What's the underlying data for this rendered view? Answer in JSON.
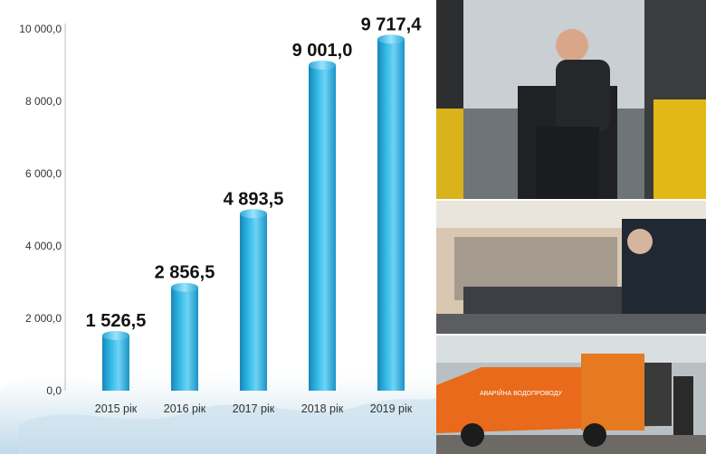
{
  "chart_data": {
    "type": "bar",
    "categories": [
      "2015 рік",
      "2016 рік",
      "2017 рік",
      "2018 рік",
      "2019 рік"
    ],
    "values": [
      1526.5,
      2856.5,
      4893.5,
      9001.0,
      9717.4
    ],
    "value_labels": [
      "1 526,5",
      "2 856,5",
      "4 893,5",
      "9 001,0",
      "9 717,4"
    ],
    "yticks": [
      0,
      2000,
      4000,
      6000,
      8000,
      10000
    ],
    "ytick_labels": [
      "0,0",
      "2 000,0",
      "4 000,0",
      "6 000,0",
      "8 000,0",
      "10 000,0"
    ],
    "ylim": [
      0,
      10000
    ],
    "title": "",
    "xlabel": "",
    "ylabel": "",
    "grid": false,
    "bar_color": "#33b3e3"
  },
  "photos": {
    "top": "excavator-operator-photo",
    "middle": "meter-testing-workshop-photo",
    "bottom": "service-van-photo"
  },
  "van_text": "АВАРІЙНА ВОДОПРОВОДУ"
}
